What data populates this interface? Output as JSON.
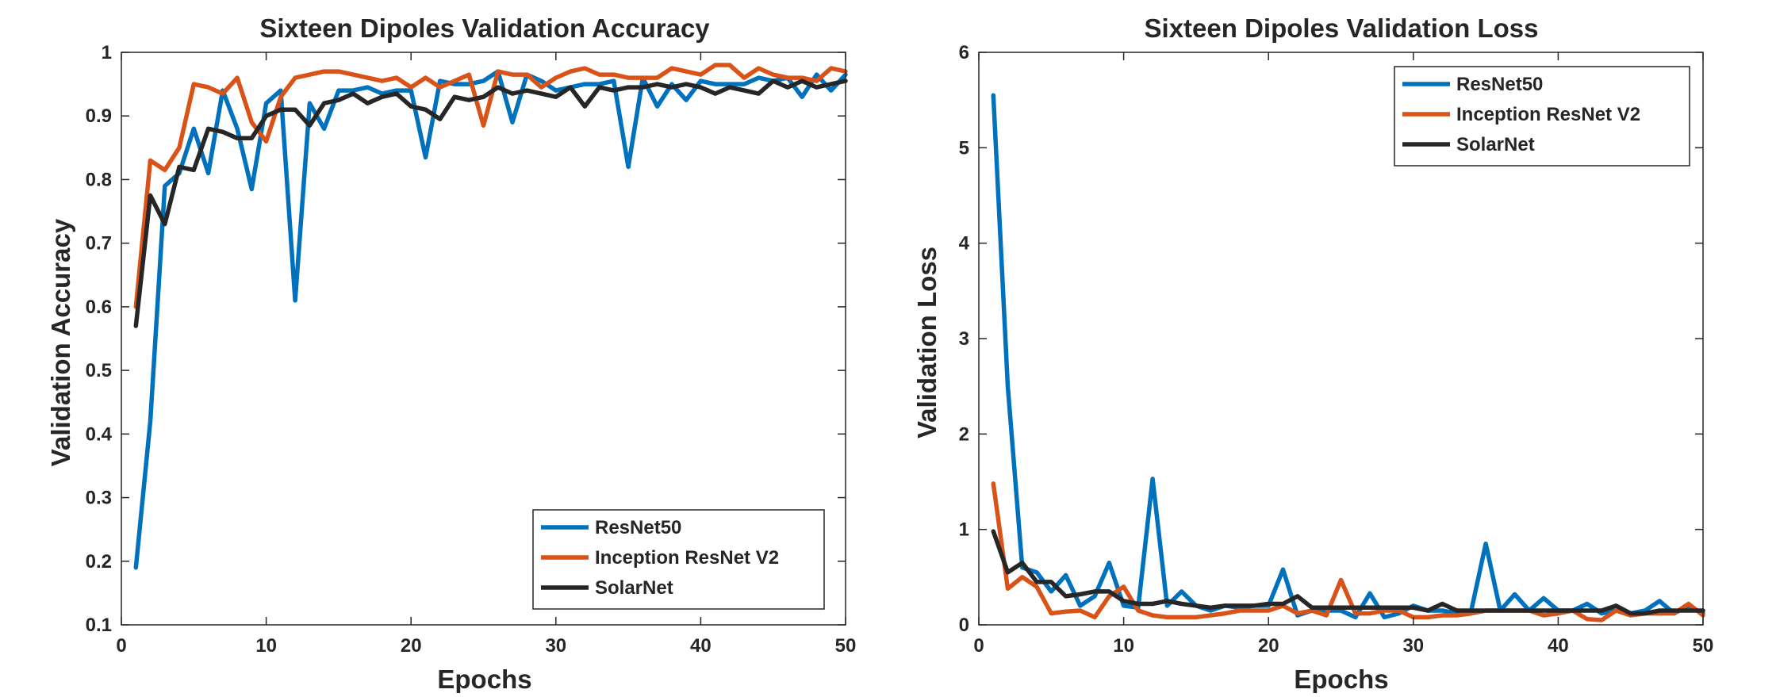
{
  "chart_data": [
    {
      "type": "line",
      "title": "Sixteen Dipoles Validation Accuracy",
      "xlabel": "Epochs",
      "ylabel": "Validation Accuracy",
      "xlim": [
        0,
        50
      ],
      "ylim": [
        0.1,
        1
      ],
      "xticks": [
        "0",
        "10",
        "20",
        "30",
        "40",
        "50"
      ],
      "yticks": [
        "0.1",
        "0.2",
        "0.3",
        "0.4",
        "0.5",
        "0.6",
        "0.7",
        "0.8",
        "0.9",
        "1"
      ],
      "grid": false,
      "legend_position": "bottom-right",
      "x": [
        1,
        2,
        3,
        4,
        5,
        6,
        7,
        8,
        9,
        10,
        11,
        12,
        13,
        14,
        15,
        16,
        17,
        18,
        19,
        20,
        21,
        22,
        23,
        24,
        25,
        26,
        27,
        28,
        29,
        30,
        31,
        32,
        33,
        34,
        35,
        36,
        37,
        38,
        39,
        40,
        41,
        42,
        43,
        44,
        45,
        46,
        47,
        48,
        49,
        50
      ],
      "series": [
        {
          "name": "ResNet50",
          "color": "#0072BD",
          "values": [
            0.19,
            0.42,
            0.79,
            0.81,
            0.88,
            0.81,
            0.94,
            0.88,
            0.785,
            0.92,
            0.94,
            0.61,
            0.92,
            0.88,
            0.94,
            0.94,
            0.945,
            0.935,
            0.94,
            0.94,
            0.835,
            0.955,
            0.95,
            0.95,
            0.955,
            0.97,
            0.89,
            0.965,
            0.955,
            0.94,
            0.945,
            0.95,
            0.95,
            0.955,
            0.82,
            0.96,
            0.915,
            0.95,
            0.925,
            0.955,
            0.95,
            0.95,
            0.95,
            0.96,
            0.955,
            0.96,
            0.93,
            0.965,
            0.94,
            0.965
          ]
        },
        {
          "name": "Inception ResNet V2",
          "color": "#D95319",
          "values": [
            0.6,
            0.83,
            0.815,
            0.85,
            0.95,
            0.945,
            0.935,
            0.96,
            0.89,
            0.86,
            0.93,
            0.96,
            0.965,
            0.97,
            0.97,
            0.965,
            0.96,
            0.955,
            0.96,
            0.945,
            0.96,
            0.945,
            0.955,
            0.965,
            0.885,
            0.97,
            0.965,
            0.965,
            0.945,
            0.96,
            0.97,
            0.975,
            0.965,
            0.965,
            0.96,
            0.96,
            0.96,
            0.975,
            0.97,
            0.965,
            0.98,
            0.98,
            0.96,
            0.975,
            0.965,
            0.96,
            0.96,
            0.955,
            0.975,
            0.97
          ]
        },
        {
          "name": "SolarNet",
          "color": "#262626",
          "values": [
            0.57,
            0.775,
            0.73,
            0.82,
            0.815,
            0.88,
            0.875,
            0.865,
            0.865,
            0.9,
            0.91,
            0.91,
            0.885,
            0.92,
            0.925,
            0.935,
            0.92,
            0.93,
            0.935,
            0.915,
            0.91,
            0.895,
            0.93,
            0.925,
            0.93,
            0.945,
            0.935,
            0.94,
            0.935,
            0.93,
            0.945,
            0.915,
            0.945,
            0.94,
            0.945,
            0.945,
            0.95,
            0.945,
            0.95,
            0.945,
            0.935,
            0.945,
            0.94,
            0.935,
            0.955,
            0.945,
            0.955,
            0.945,
            0.95,
            0.955
          ]
        }
      ]
    },
    {
      "type": "line",
      "title": "Sixteen Dipoles Validation Loss",
      "xlabel": "Epochs",
      "ylabel": "Validation Loss",
      "xlim": [
        0,
        50
      ],
      "ylim": [
        0,
        6
      ],
      "xticks": [
        "0",
        "10",
        "20",
        "30",
        "40",
        "50"
      ],
      "yticks": [
        "0",
        "1",
        "2",
        "3",
        "4",
        "5",
        "6"
      ],
      "grid": false,
      "legend_position": "top-right",
      "x": [
        1,
        2,
        3,
        4,
        5,
        6,
        7,
        8,
        9,
        10,
        11,
        12,
        13,
        14,
        15,
        16,
        17,
        18,
        19,
        20,
        21,
        22,
        23,
        24,
        25,
        26,
        27,
        28,
        29,
        30,
        31,
        32,
        33,
        34,
        35,
        36,
        37,
        38,
        39,
        40,
        41,
        42,
        43,
        44,
        45,
        46,
        47,
        48,
        49,
        50
      ],
      "series": [
        {
          "name": "ResNet50",
          "color": "#0072BD",
          "values": [
            5.55,
            2.5,
            0.6,
            0.55,
            0.35,
            0.52,
            0.2,
            0.3,
            0.65,
            0.2,
            0.18,
            1.53,
            0.2,
            0.35,
            0.2,
            0.15,
            0.2,
            0.18,
            0.2,
            0.2,
            0.58,
            0.1,
            0.15,
            0.15,
            0.15,
            0.08,
            0.33,
            0.08,
            0.12,
            0.2,
            0.15,
            0.15,
            0.12,
            0.15,
            0.85,
            0.15,
            0.32,
            0.15,
            0.28,
            0.15,
            0.15,
            0.22,
            0.12,
            0.15,
            0.12,
            0.15,
            0.25,
            0.12,
            0.2,
            0.12
          ]
        },
        {
          "name": "Inception ResNet V2",
          "color": "#D95319",
          "values": [
            1.48,
            0.38,
            0.5,
            0.4,
            0.12,
            0.14,
            0.15,
            0.08,
            0.3,
            0.4,
            0.15,
            0.1,
            0.08,
            0.08,
            0.08,
            0.1,
            0.12,
            0.15,
            0.15,
            0.15,
            0.2,
            0.12,
            0.15,
            0.1,
            0.47,
            0.12,
            0.12,
            0.15,
            0.15,
            0.08,
            0.08,
            0.1,
            0.1,
            0.12,
            0.15,
            0.15,
            0.15,
            0.15,
            0.1,
            0.12,
            0.15,
            0.06,
            0.05,
            0.15,
            0.1,
            0.12,
            0.12,
            0.12,
            0.22,
            0.1
          ]
        },
        {
          "name": "SolarNet",
          "color": "#262626",
          "values": [
            0.98,
            0.55,
            0.65,
            0.45,
            0.45,
            0.3,
            0.32,
            0.35,
            0.35,
            0.25,
            0.22,
            0.22,
            0.25,
            0.22,
            0.2,
            0.18,
            0.2,
            0.2,
            0.2,
            0.22,
            0.22,
            0.3,
            0.18,
            0.18,
            0.18,
            0.18,
            0.18,
            0.18,
            0.18,
            0.18,
            0.15,
            0.22,
            0.15,
            0.15,
            0.15,
            0.15,
            0.15,
            0.15,
            0.15,
            0.15,
            0.15,
            0.15,
            0.15,
            0.2,
            0.12,
            0.12,
            0.15,
            0.15,
            0.15,
            0.15
          ]
        }
      ]
    }
  ]
}
